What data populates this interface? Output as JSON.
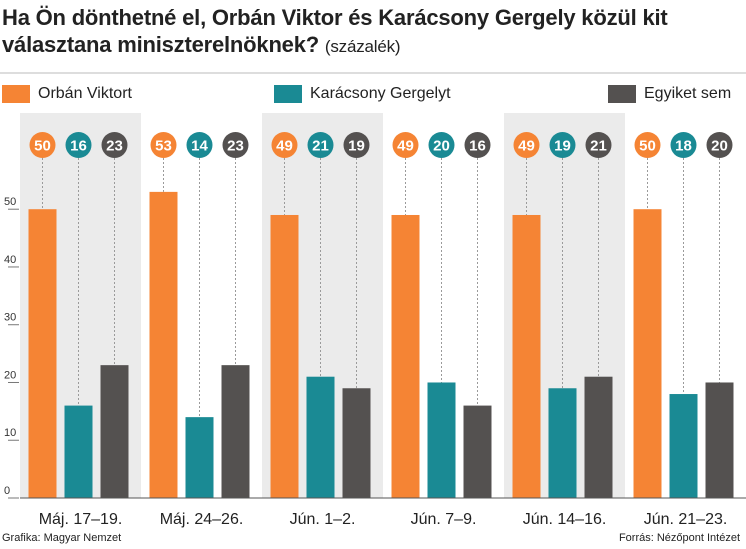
{
  "title": {
    "main": "Ha Ön dönthetné el, Orbán Viktor és Karácsony Gergely közül kit választana miniszterelnöknek?",
    "unit": "(százalék)"
  },
  "colors": {
    "orban": "#f58434",
    "karacsony": "#1a8a94",
    "none": "#545150",
    "band": "#ebebeb"
  },
  "chart_data": {
    "type": "bar",
    "categories": [
      "Máj. 17–19.",
      "Máj. 24–26.",
      "Jún. 1–2.",
      "Jún. 7–9.",
      "Jún. 14–16.",
      "Jún. 21–23."
    ],
    "series": [
      {
        "name": "Orbán Viktort",
        "values": [
          50,
          53,
          49,
          49,
          49,
          50
        ]
      },
      {
        "name": "Karácsony Gergelyt",
        "values": [
          16,
          14,
          21,
          20,
          19,
          18
        ]
      },
      {
        "name": "Egyiket sem",
        "values": [
          23,
          23,
          19,
          16,
          21,
          20
        ]
      }
    ],
    "ylim": [
      0,
      58
    ],
    "yticks": [
      0,
      10,
      20,
      30,
      40,
      50
    ],
    "ytick_labels": [
      "0",
      "10",
      "20",
      "30",
      "40",
      "50"
    ],
    "xlabel": "",
    "ylabel": "",
    "legend_position": "top",
    "grid": false,
    "shaded_bands": [
      0,
      2,
      4
    ]
  },
  "footer": {
    "left": "Grafika: Magyar Nemzet",
    "right": "Forrás: Nézőpont Intézet"
  }
}
